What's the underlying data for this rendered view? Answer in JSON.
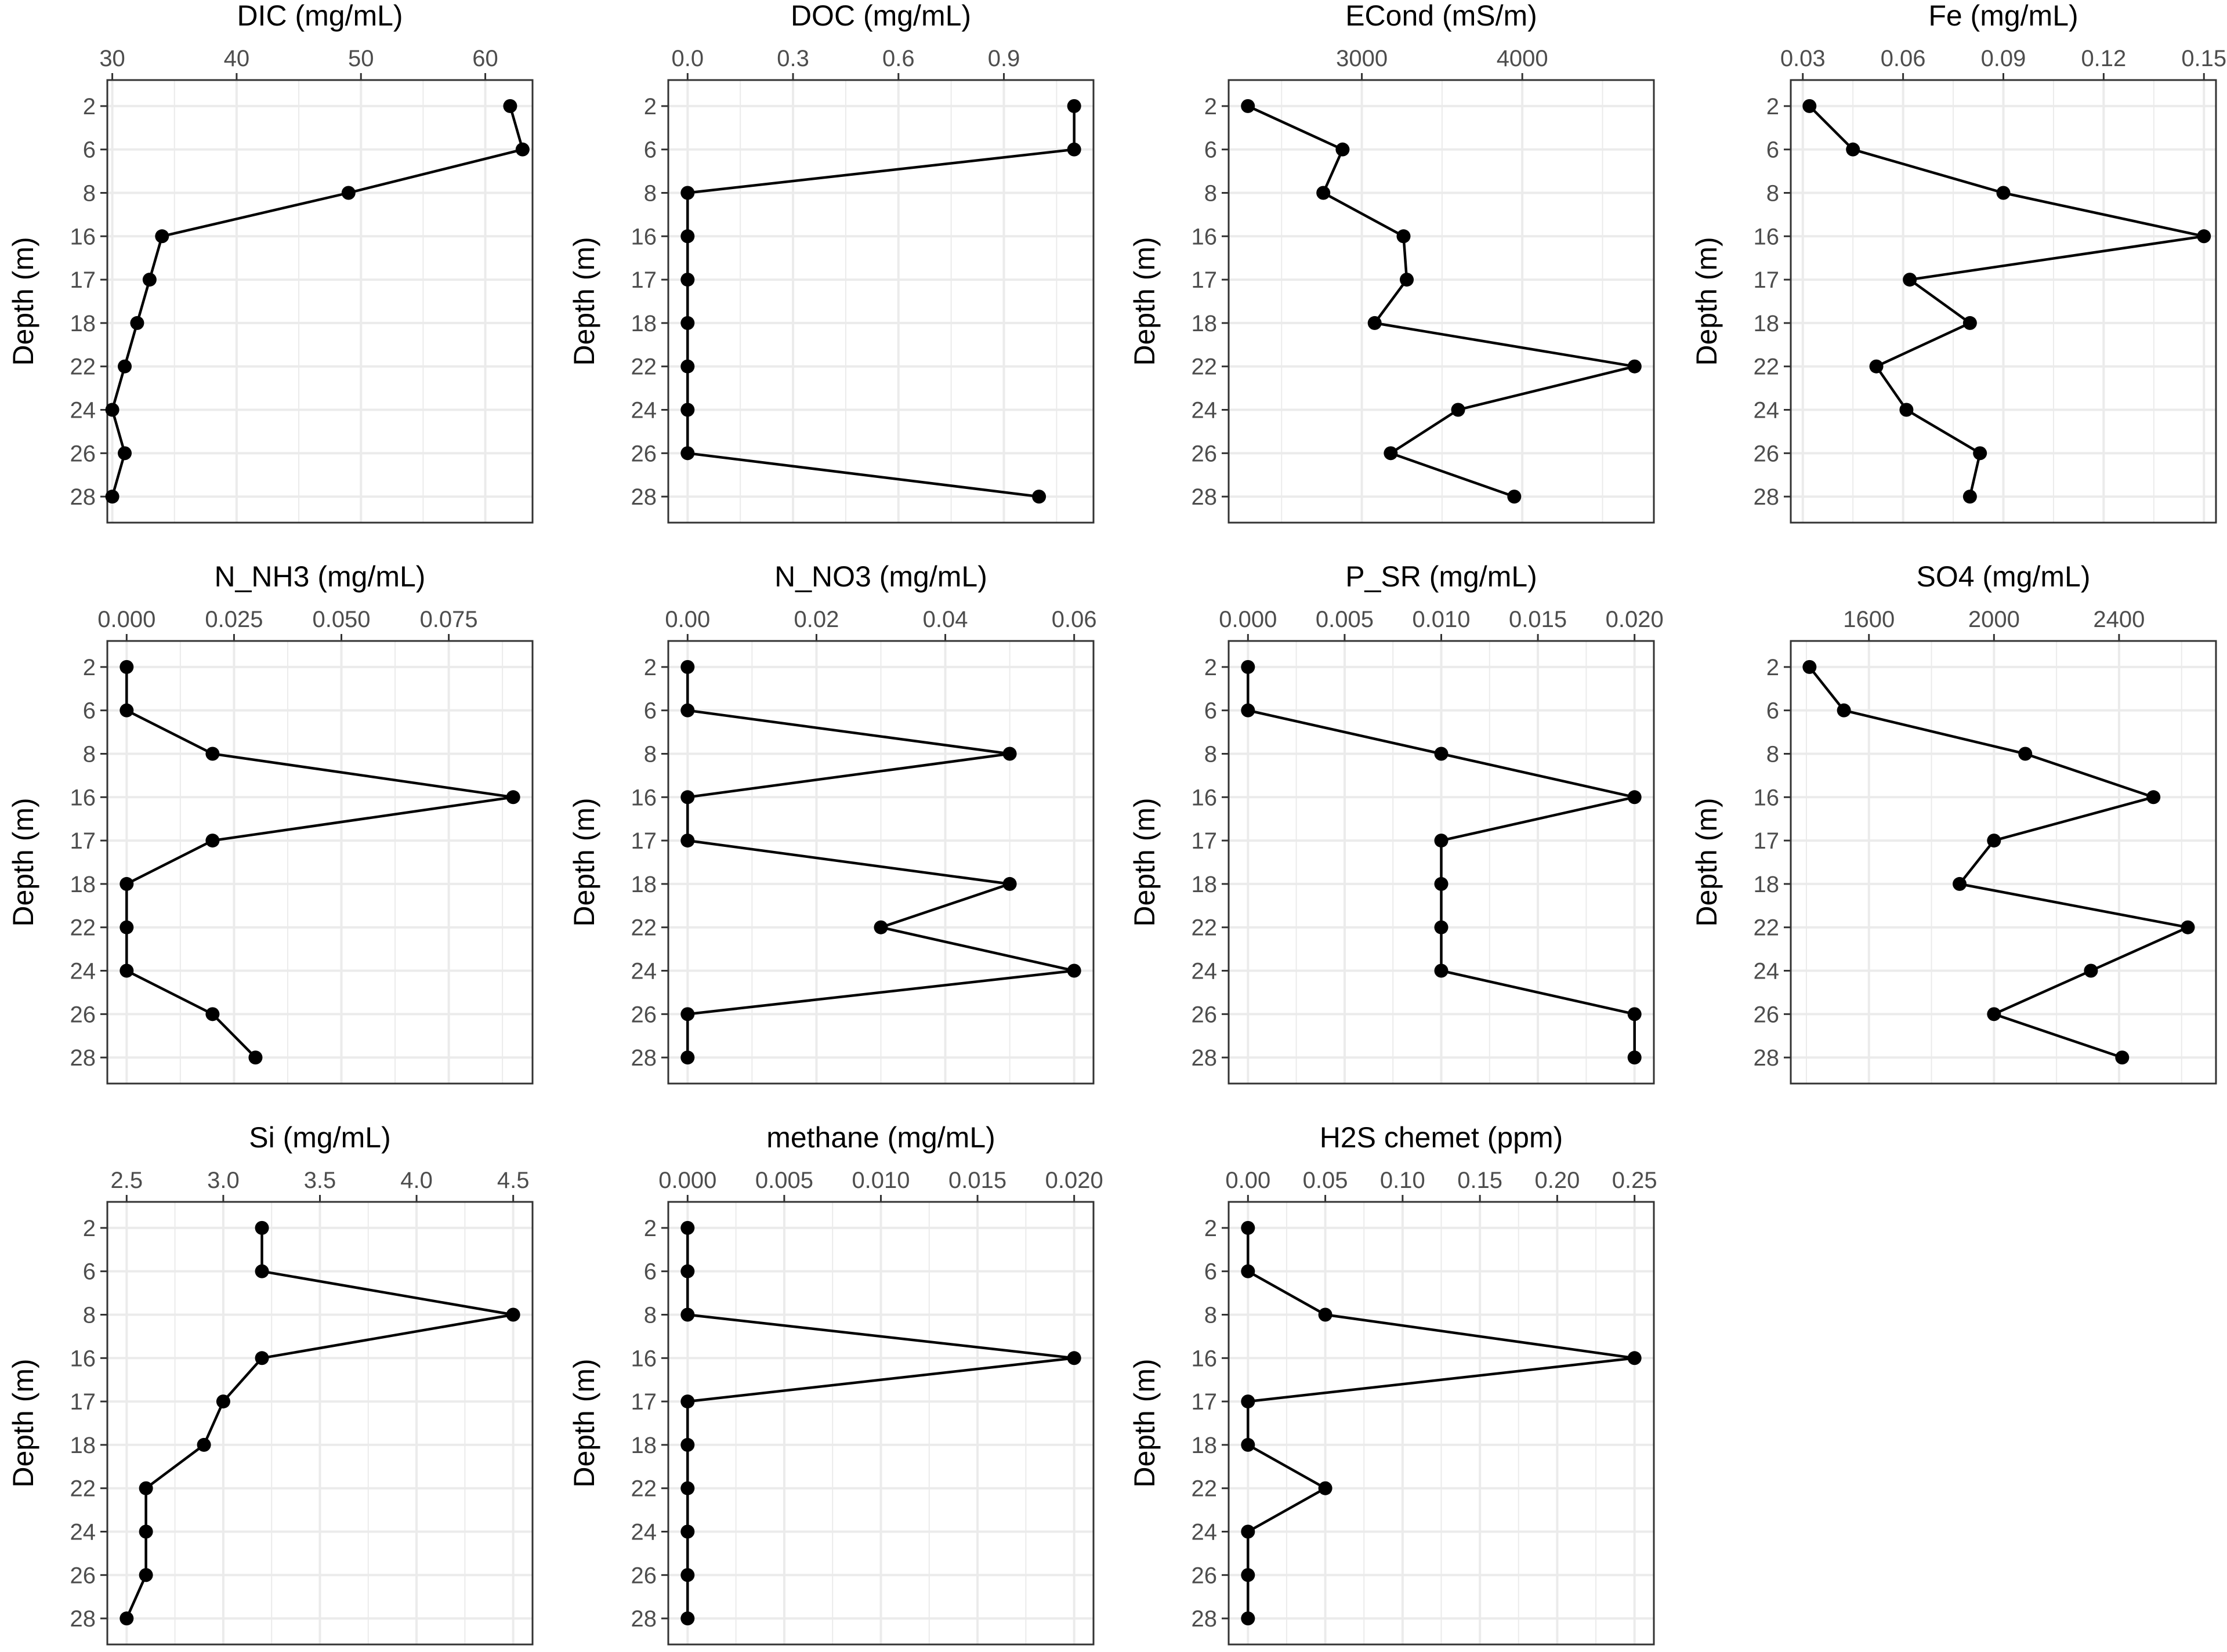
{
  "colors": {
    "line": "#000000",
    "point": "#000000",
    "grid": "#ebebeb",
    "panel_border": "#333333",
    "tick_text": "#4d4d4d",
    "title_text": "#000000"
  },
  "shared": {
    "ylabel": "Depth (m)",
    "depths": [
      "2",
      "6",
      "8",
      "16",
      "17",
      "18",
      "22",
      "24",
      "26",
      "28"
    ]
  },
  "chart_data": [
    {
      "type": "line",
      "title": "DIC (mg/mL)",
      "xlim": [
        29.6,
        63.8
      ],
      "xticks": [
        30,
        40,
        50,
        60
      ],
      "xtick_labels": [
        "30",
        "40",
        "50",
        "60"
      ],
      "values": [
        62,
        63,
        49,
        34,
        33,
        32,
        31,
        30,
        31,
        30
      ]
    },
    {
      "type": "line",
      "title": "DOC (mg/mL)",
      "xlim": [
        -0.055,
        1.155
      ],
      "xticks": [
        0,
        0.3,
        0.6,
        0.9
      ],
      "xtick_labels": [
        "0.0",
        "0.3",
        "0.6",
        "0.9"
      ],
      "values": [
        1.1,
        1.1,
        0,
        0,
        0,
        0,
        0,
        0,
        0,
        1.0
      ]
    },
    {
      "type": "line",
      "title": "ECond (mS/m)",
      "xlim": [
        2170,
        4820
      ],
      "xticks": [
        3000,
        4000
      ],
      "xtick_labels": [
        "3000",
        "4000"
      ],
      "values": [
        2290,
        2880,
        2760,
        3260,
        3280,
        3080,
        4700,
        3600,
        3180,
        3950
      ]
    },
    {
      "type": "line",
      "title": "Fe (mg/mL)",
      "xlim": [
        0.0264,
        0.1536
      ],
      "xticks": [
        0.03,
        0.06,
        0.09,
        0.12,
        0.15
      ],
      "xtick_labels": [
        "0.03",
        "0.06",
        "0.09",
        "0.12",
        "0.15"
      ],
      "values": [
        0.032,
        0.045,
        0.09,
        0.15,
        0.062,
        0.08,
        0.052,
        0.061,
        0.083,
        0.08
      ]
    },
    {
      "type": "line",
      "title": "N_NH3 (mg/mL)",
      "xlim": [
        -0.0045,
        0.0945
      ],
      "xticks": [
        0,
        0.025,
        0.05,
        0.075
      ],
      "xtick_labels": [
        "0.000",
        "0.025",
        "0.050",
        "0.075"
      ],
      "values": [
        0,
        0,
        0.02,
        0.09,
        0.02,
        0,
        0,
        0,
        0.02,
        0.03
      ]
    },
    {
      "type": "line",
      "title": "N_NO3 (mg/mL)",
      "xlim": [
        -0.003,
        0.063
      ],
      "xticks": [
        0,
        0.02,
        0.04,
        0.06
      ],
      "xtick_labels": [
        "0.00",
        "0.02",
        "0.04",
        "0.06"
      ],
      "values": [
        0,
        0,
        0.05,
        0,
        0,
        0.05,
        0.03,
        0.06,
        0,
        0
      ]
    },
    {
      "type": "line",
      "title": "P_SR (mg/mL)",
      "xlim": [
        -0.001,
        0.021
      ],
      "xticks": [
        0,
        0.005,
        0.01,
        0.015,
        0.02
      ],
      "xtick_labels": [
        "0.000",
        "0.005",
        "0.010",
        "0.015",
        "0.020"
      ],
      "values": [
        0,
        0,
        0.01,
        0.02,
        0.01,
        0.01,
        0.01,
        0.01,
        0.02,
        0.02
      ]
    },
    {
      "type": "line",
      "title": "SO4 (mg/mL)",
      "xlim": [
        1350,
        2710
      ],
      "xticks": [
        1600,
        2000,
        2400
      ],
      "xtick_labels": [
        "1600",
        "2000",
        "2400"
      ],
      "values": [
        1410,
        1520,
        2100,
        2510,
        2000,
        1890,
        2620,
        2310,
        2000,
        2410
      ]
    },
    {
      "type": "line",
      "title": "Si (mg/mL)",
      "xlim": [
        2.4,
        4.6
      ],
      "xticks": [
        2.5,
        3,
        3.5,
        4,
        4.5
      ],
      "xtick_labels": [
        "2.5",
        "3.0",
        "3.5",
        "4.0",
        "4.5"
      ],
      "values": [
        3.2,
        3.2,
        4.5,
        3.2,
        3.0,
        2.9,
        2.6,
        2.6,
        2.6,
        2.5
      ]
    },
    {
      "type": "line",
      "title": "methane (mg/mL)",
      "xlim": [
        -0.001,
        0.021
      ],
      "xticks": [
        0,
        0.005,
        0.01,
        0.015,
        0.02
      ],
      "xtick_labels": [
        "0.000",
        "0.005",
        "0.010",
        "0.015",
        "0.020"
      ],
      "values": [
        0,
        0,
        0,
        0.02,
        0,
        0,
        0,
        0,
        0,
        0
      ]
    },
    {
      "type": "line",
      "title": "H2S chemet (ppm)",
      "xlim": [
        -0.0125,
        0.2625
      ],
      "xticks": [
        0,
        0.05,
        0.1,
        0.15,
        0.2,
        0.25
      ],
      "xtick_labels": [
        "0.00",
        "0.05",
        "0.10",
        "0.15",
        "0.20",
        "0.25"
      ],
      "values": [
        0,
        0,
        0.05,
        0.25,
        0,
        0,
        0.05,
        0,
        0,
        0
      ]
    }
  ]
}
